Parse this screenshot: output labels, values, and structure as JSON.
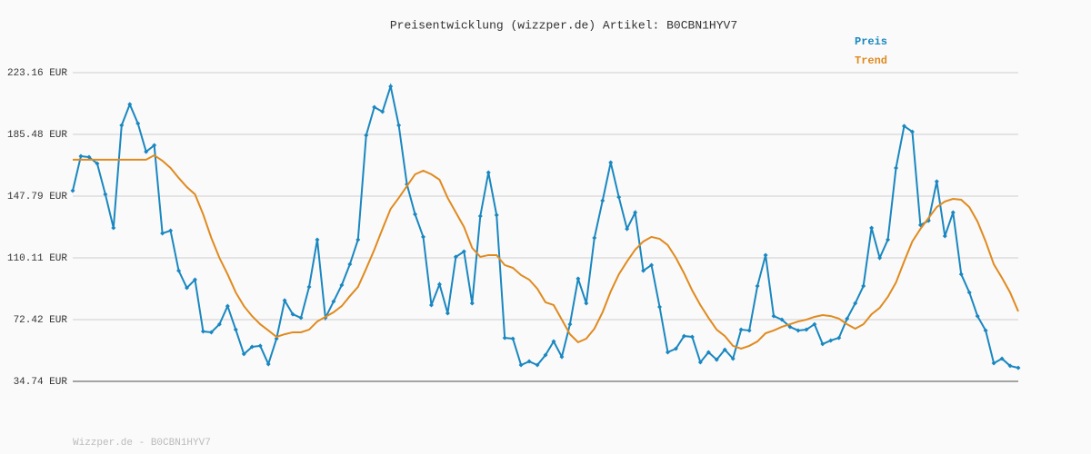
{
  "chart_data": {
    "type": "line",
    "title": "Preisentwicklung (wizzper.de) Artikel: B0CBN1HYV7",
    "footer": "Wizzper.de - B0CBN1HYV7",
    "legend": "top-right",
    "grid": true,
    "ylim": [
      34.74,
      223.16
    ],
    "yticks": [
      {
        "value": 34.74,
        "label": "34.74 EUR"
      },
      {
        "value": 72.42,
        "label": "72.42 EUR"
      },
      {
        "value": 110.11,
        "label": "110.11 EUR"
      },
      {
        "value": 147.79,
        "label": "147.79 EUR"
      },
      {
        "value": 185.48,
        "label": "185.48 EUR"
      },
      {
        "value": 223.16,
        "label": "223.16 EUR"
      }
    ],
    "categories": [
      null,
      null,
      null,
      null,
      null,
      null,
      null,
      null,
      null,
      null,
      null,
      null,
      null,
      null,
      null,
      null,
      null,
      null,
      null,
      null,
      null,
      null,
      null,
      null,
      null,
      null,
      null,
      null,
      null,
      null,
      null,
      null,
      null,
      null,
      null,
      null,
      null,
      null,
      null,
      null,
      null,
      null,
      null,
      null,
      null,
      null,
      null,
      null,
      null,
      null,
      null,
      null,
      null,
      null,
      null,
      null,
      null,
      null,
      null,
      null,
      null,
      null,
      null,
      null,
      null,
      null,
      null,
      null,
      null,
      null,
      null,
      null,
      null,
      null,
      null,
      null,
      null,
      null,
      null,
      null,
      null,
      null,
      null,
      null,
      null,
      null,
      null,
      null,
      null,
      null,
      null,
      null,
      null,
      null,
      null,
      null,
      null,
      null,
      null,
      null,
      null,
      null,
      null,
      null,
      null,
      null,
      null,
      null,
      null,
      null,
      null,
      null,
      null,
      null,
      null,
      null,
      null
    ],
    "series": [
      {
        "name": "Preis",
        "color": "#1a87c0",
        "markers": true,
        "values": [
          151.1,
          172.2,
          171.6,
          167.7,
          148.9,
          128.4,
          191.0,
          203.8,
          192.1,
          174.9,
          178.8,
          125.1,
          126.7,
          102.3,
          91.8,
          96.8,
          65.2,
          64.7,
          69.6,
          80.7,
          66.3,
          51.4,
          55.8,
          56.4,
          45.3,
          60.8,
          84.1,
          75.7,
          73.5,
          92.4,
          121.2,
          73.5,
          83.5,
          93.5,
          106.2,
          121.2,
          184.9,
          202.1,
          199.3,
          214.8,
          191.0,
          155.0,
          136.7,
          122.9,
          81.3,
          94.0,
          76.3,
          110.7,
          114.0,
          82.4,
          135.6,
          162.2,
          136.2,
          61.3,
          60.8,
          44.7,
          46.9,
          44.7,
          50.8,
          59.1,
          49.7,
          69.6,
          97.4,
          82.4,
          122.3,
          145.0,
          168.3,
          147.2,
          127.8,
          137.8,
          102.3,
          105.7,
          80.2,
          52.5,
          54.7,
          62.4,
          61.9,
          46.4,
          52.5,
          48.0,
          54.1,
          48.6,
          66.3,
          65.8,
          92.9,
          111.8,
          74.6,
          72.4,
          68.0,
          65.8,
          66.3,
          69.6,
          57.5,
          59.7,
          61.3,
          73.0,
          82.4,
          92.9,
          128.4,
          110.1,
          121.2,
          165.0,
          190.5,
          187.1,
          130.1,
          132.8,
          156.7,
          123.4,
          137.8,
          100.1,
          89.0,
          74.6,
          65.8,
          45.8,
          48.6,
          44.2,
          43.0
        ]
      },
      {
        "name": "Trend",
        "color": "#e08a1e",
        "markers": false,
        "values": [
          170.0,
          170.0,
          170.0,
          170.0,
          170.0,
          170.0,
          170.0,
          170.0,
          170.0,
          170.0,
          172.7,
          169.4,
          165.0,
          158.9,
          153.3,
          148.9,
          136.7,
          122.3,
          110.1,
          100.1,
          89.0,
          80.7,
          74.6,
          69.6,
          65.8,
          61.9,
          63.5,
          64.7,
          64.7,
          66.3,
          71.3,
          74.1,
          76.9,
          80.7,
          86.8,
          92.4,
          103.5,
          115.1,
          127.8,
          140.0,
          146.7,
          153.9,
          161.1,
          163.3,
          161.1,
          157.8,
          146.7,
          137.8,
          129.0,
          116.2,
          110.7,
          111.8,
          111.8,
          105.7,
          104.0,
          99.6,
          96.8,
          91.3,
          83.0,
          81.3,
          72.4,
          63.5,
          58.6,
          60.8,
          66.9,
          76.9,
          89.6,
          100.1,
          107.9,
          115.1,
          120.1,
          122.9,
          121.7,
          117.9,
          110.1,
          100.7,
          90.2,
          81.3,
          73.5,
          66.3,
          62.4,
          56.4,
          54.7,
          56.4,
          59.1,
          64.1,
          65.8,
          68.0,
          69.6,
          71.3,
          72.4,
          74.1,
          75.2,
          74.6,
          73.0,
          69.6,
          66.9,
          69.6,
          75.7,
          79.6,
          86.3,
          95.1,
          107.9,
          120.1,
          127.8,
          134.5,
          141.1,
          144.5,
          146.1,
          145.6,
          141.1,
          132.3,
          120.1,
          106.2,
          97.9,
          89.0,
          77.4
        ]
      }
    ]
  }
}
